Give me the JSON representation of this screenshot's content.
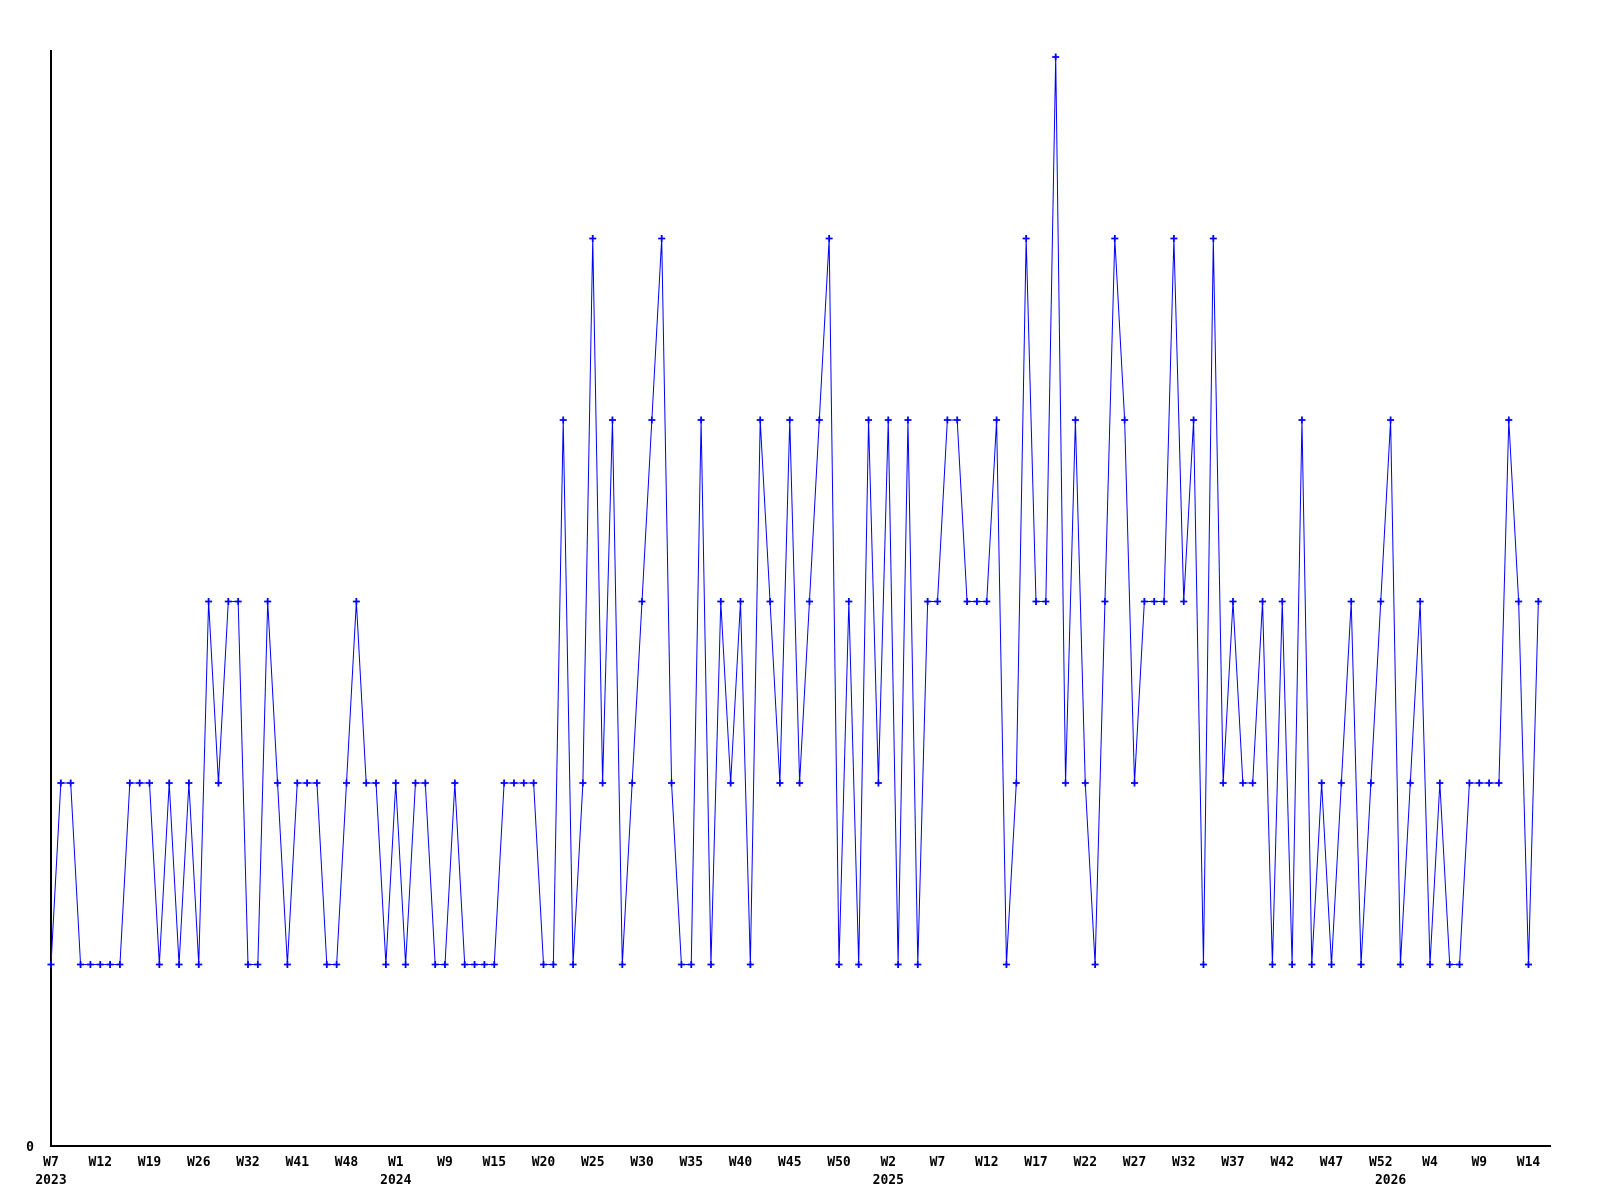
{
  "chart_data": {
    "type": "line",
    "title": "",
    "xlabel": "",
    "ylabel": "",
    "grid": false,
    "legend": null,
    "y_axis": {
      "zero_label": "0",
      "min": 0,
      "max_visible": 6,
      "unit_step": 1
    },
    "x_axis_note": "weekly ISO-week categorical axis, tick every 5 data points",
    "line_color": "#0000ff",
    "marker": {
      "shape": "plus",
      "color": "#0000ff"
    },
    "axis_color": "#000000",
    "values": [
      1,
      2,
      2,
      1,
      1,
      1,
      1,
      1,
      2,
      2,
      2,
      1,
      2,
      1,
      2,
      1,
      3,
      2,
      3,
      3,
      1,
      1,
      3,
      2,
      1,
      2,
      2,
      2,
      1,
      1,
      2,
      3,
      2,
      2,
      1,
      2,
      1,
      2,
      2,
      1,
      1,
      2,
      1,
      1,
      1,
      1,
      2,
      2,
      2,
      2,
      1,
      1,
      4,
      1,
      2,
      5,
      2,
      4,
      1,
      2,
      3,
      4,
      5,
      2,
      1,
      1,
      4,
      1,
      3,
      2,
      3,
      1,
      4,
      3,
      2,
      4,
      2,
      3,
      4,
      5,
      1,
      3,
      1,
      4,
      2,
      4,
      1,
      4,
      1,
      3,
      3,
      4,
      4,
      3,
      3,
      3,
      4,
      1,
      2,
      5,
      3,
      3,
      6,
      2,
      4,
      2,
      1,
      3,
      5,
      4,
      2,
      3,
      3,
      3,
      5,
      3,
      4,
      1,
      5,
      2,
      3,
      2,
      2,
      3,
      1,
      3,
      1,
      4,
      1,
      2,
      1,
      2,
      3,
      1,
      2,
      3,
      4,
      1,
      2,
      3,
      1,
      2,
      1,
      1,
      2,
      2,
      2,
      2,
      4,
      3,
      1,
      3
    ],
    "x_ticks": [
      {
        "i": 0,
        "label": "W7"
      },
      {
        "i": 5,
        "label": "W12"
      },
      {
        "i": 10,
        "label": "W19"
      },
      {
        "i": 15,
        "label": "W26"
      },
      {
        "i": 20,
        "label": "W32"
      },
      {
        "i": 25,
        "label": "W41"
      },
      {
        "i": 30,
        "label": "W48"
      },
      {
        "i": 35,
        "label": "W1"
      },
      {
        "i": 40,
        "label": "W9"
      },
      {
        "i": 45,
        "label": "W15"
      },
      {
        "i": 50,
        "label": "W20"
      },
      {
        "i": 55,
        "label": "W25"
      },
      {
        "i": 60,
        "label": "W30"
      },
      {
        "i": 65,
        "label": "W35"
      },
      {
        "i": 70,
        "label": "W40"
      },
      {
        "i": 75,
        "label": "W45"
      },
      {
        "i": 80,
        "label": "W50"
      },
      {
        "i": 85,
        "label": "W2"
      },
      {
        "i": 90,
        "label": "W7"
      },
      {
        "i": 95,
        "label": "W12"
      },
      {
        "i": 100,
        "label": "W17"
      },
      {
        "i": 105,
        "label": "W22"
      },
      {
        "i": 110,
        "label": "W27"
      },
      {
        "i": 115,
        "label": "W32"
      },
      {
        "i": 120,
        "label": "W37"
      },
      {
        "i": 125,
        "label": "W42"
      },
      {
        "i": 130,
        "label": "W47"
      },
      {
        "i": 135,
        "label": "W52"
      },
      {
        "i": 140,
        "label": "W4"
      },
      {
        "i": 145,
        "label": "W9"
      },
      {
        "i": 150,
        "label": "W14"
      }
    ],
    "year_labels": [
      {
        "i": 0,
        "label": "2023"
      },
      {
        "i": 35,
        "label": "2024"
      },
      {
        "i": 85,
        "label": "2025"
      },
      {
        "i": 136,
        "label": "2026"
      }
    ]
  }
}
